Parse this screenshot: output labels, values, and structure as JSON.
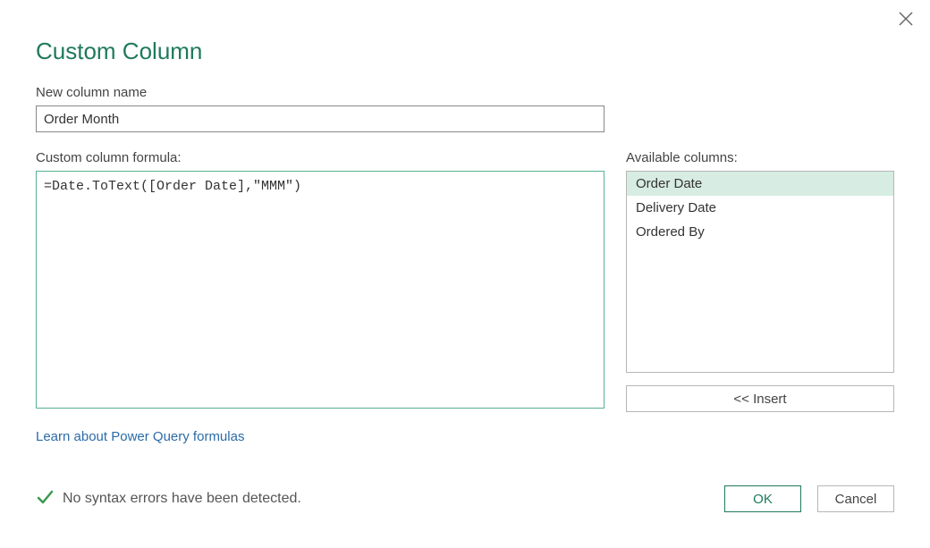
{
  "dialog": {
    "title": "Custom Column",
    "close_icon": "close"
  },
  "fields": {
    "column_name_label": "New column name",
    "column_name_value": "Order Month",
    "formula_label": "Custom column formula:",
    "formula_value": "=Date.ToText([Order Date],\"MMM\")",
    "available_label": "Available columns:"
  },
  "available_columns": [
    {
      "label": "Order Date",
      "selected": true
    },
    {
      "label": "Delivery Date",
      "selected": false
    },
    {
      "label": "Ordered By",
      "selected": false
    }
  ],
  "buttons": {
    "insert": "<<  Insert",
    "ok": "OK",
    "cancel": "Cancel"
  },
  "link": {
    "learn": "Learn about Power Query formulas"
  },
  "status": {
    "message": "No syntax errors have been detected.",
    "ok": true
  },
  "colors": {
    "accent": "#1f7a5c",
    "accent_light": "#d7ece2",
    "border_focus": "#56b38f",
    "link": "#2b6ca8"
  }
}
